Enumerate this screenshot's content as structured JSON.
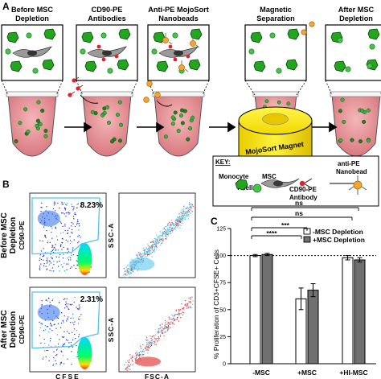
{
  "panel_a": {
    "letter": "A",
    "steps": [
      {
        "label_line1": "Before MSC",
        "label_line2": "Depletion"
      },
      {
        "label_line1": "CD90-PE",
        "label_line2": "Antibodies"
      },
      {
        "label_line1": "Anti-PE MojoSort",
        "label_line2": "Nanobeads"
      },
      {
        "label_line1": "Magnetic",
        "label_line2": "Separation"
      },
      {
        "label_line1": "After MSC",
        "label_line2": "Depletion"
      }
    ],
    "magnet_label": "MojoSort Magnet",
    "key": {
      "title": "KEY:",
      "monocyte": "Monocyte",
      "msc": "MSC",
      "tcell": "T cell",
      "antibody_line1": "CD90-PE",
      "antibody_line2": "Antibody",
      "nanobead_line1": "anti-PE",
      "nanobead_line2": "Nanobead"
    }
  },
  "panel_b": {
    "letter": "B",
    "rows": [
      {
        "label_line1": "Before MSC",
        "label_line2": "Depletion",
        "gate_percent": "8.23%"
      },
      {
        "label_line1": "After MSC",
        "label_line2": "Depletion",
        "gate_percent": "2.31%"
      }
    ],
    "left_ylabel": "CD90-PE",
    "left_xlabel": "CFSE",
    "right_ylabel": "SSC-A",
    "right_xlabel": "FSC-A"
  },
  "panel_c": {
    "letter": "C",
    "ylabel": "% Proliferation of CD3+CFSE+ Cells",
    "legend": [
      {
        "name": "-MSC Depletion",
        "color": "#ffffff"
      },
      {
        "name": "+MSC Depletion",
        "color": "#707070"
      }
    ],
    "sig_labels": {
      "ns_top": "ns",
      "ns_second": "ns",
      "three_star": "***",
      "four_star": "****"
    },
    "chart_data": {
      "type": "bar",
      "categories": [
        "-MSC",
        "+MSC",
        "+HI-MSC"
      ],
      "series": [
        {
          "name": "-MSC Depletion",
          "values": [
            100,
            60,
            98
          ],
          "errors": [
            1,
            10,
            2
          ]
        },
        {
          "name": "+MSC Depletion",
          "values": [
            101,
            68,
            96
          ],
          "errors": [
            1,
            6,
            2
          ]
        }
      ],
      "ylim": [
        0,
        125
      ],
      "yticks": [
        0,
        25,
        50,
        75,
        100,
        125
      ],
      "reference_line": 100
    }
  }
}
